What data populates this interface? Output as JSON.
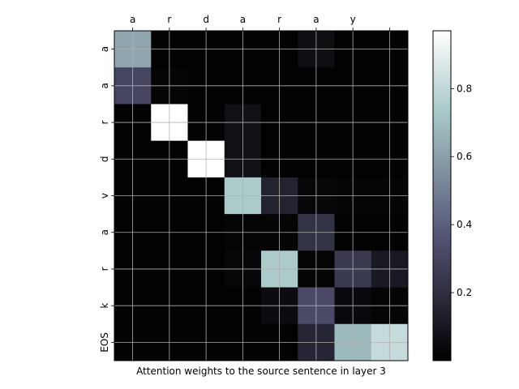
{
  "chart_data": {
    "type": "heatmap",
    "title": "",
    "xlabel": "Attention weights to the source sentence in layer 3",
    "ylabel": "",
    "x_tokens": [
      "a",
      "r",
      "d",
      "a",
      "r",
      "a",
      "y",
      ""
    ],
    "y_tokens": [
      "a",
      "a",
      "r",
      "d",
      "v",
      "a",
      "r",
      "k",
      "EOS"
    ],
    "values": [
      [
        0.62,
        0.01,
        0.01,
        0.01,
        0.01,
        0.06,
        0.01,
        0.01
      ],
      [
        0.3,
        0.02,
        0.01,
        0.01,
        0.01,
        0.01,
        0.01,
        0.01
      ],
      [
        0.01,
        0.97,
        0.01,
        0.07,
        0.01,
        0.01,
        0.01,
        0.01
      ],
      [
        0.01,
        0.01,
        0.97,
        0.07,
        0.01,
        0.01,
        0.01,
        0.01
      ],
      [
        0.01,
        0.01,
        0.01,
        0.74,
        0.15,
        0.03,
        0.02,
        0.02
      ],
      [
        0.01,
        0.01,
        0.01,
        0.02,
        0.02,
        0.22,
        0.01,
        0.01
      ],
      [
        0.01,
        0.01,
        0.01,
        0.03,
        0.74,
        0.02,
        0.25,
        0.11
      ],
      [
        0.01,
        0.01,
        0.01,
        0.01,
        0.05,
        0.32,
        0.04,
        0.02
      ],
      [
        0.01,
        0.01,
        0.01,
        0.01,
        0.01,
        0.16,
        0.68,
        0.81
      ]
    ],
    "colormap": "bone",
    "value_range": [
      0,
      0.97
    ],
    "colorbar_ticks": [
      0.2,
      0.4,
      0.6,
      0.8
    ],
    "colorbar_tick_labels": [
      "0.2",
      "0.4",
      "0.6",
      "0.8"
    ],
    "grid": true,
    "grid_color": "#b0b0b0",
    "x_tick_position": "top"
  }
}
